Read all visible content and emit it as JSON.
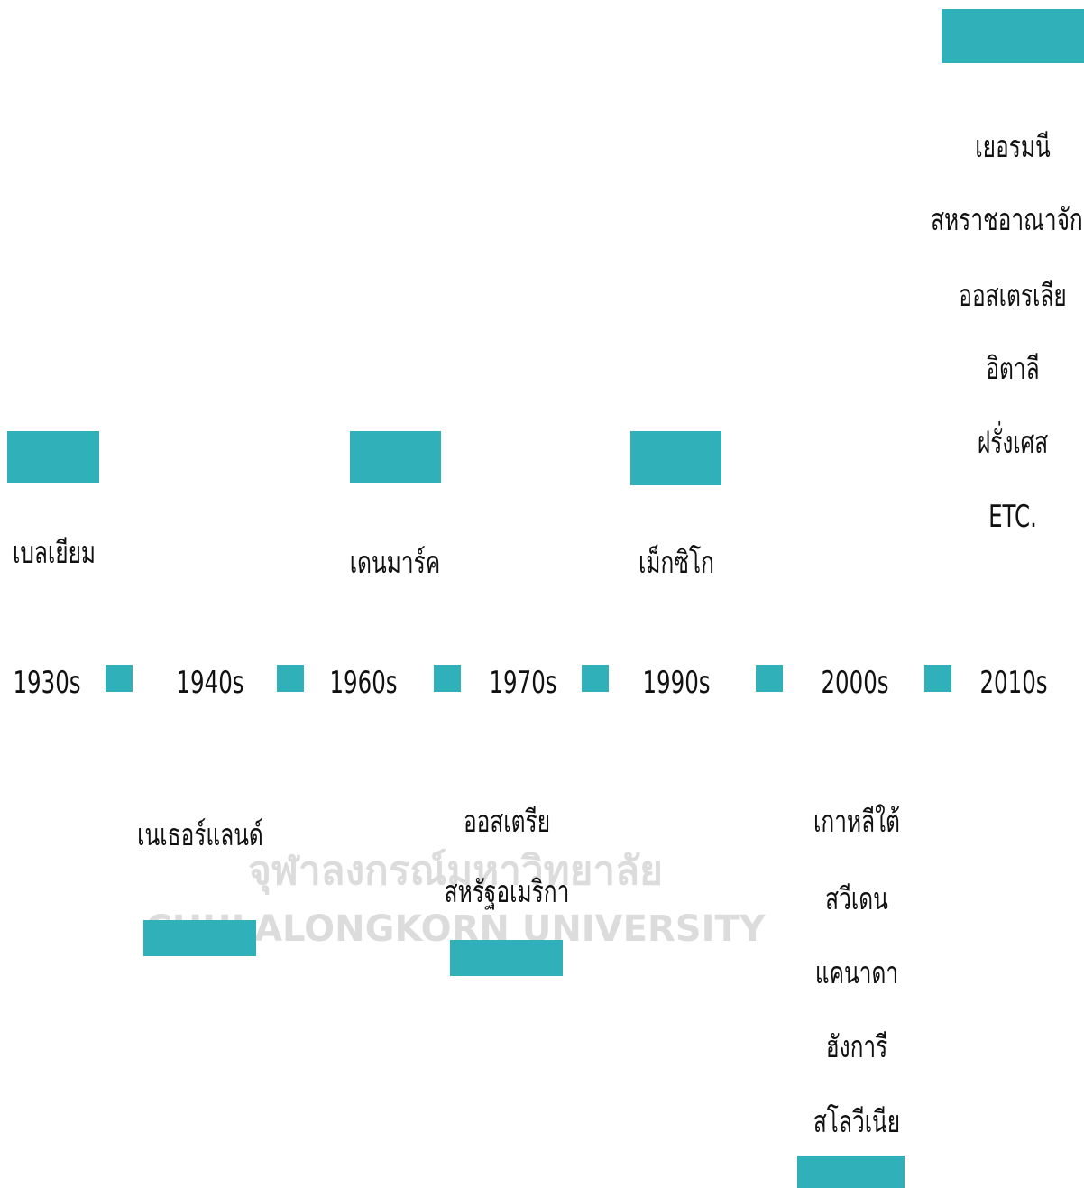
{
  "watermark": {
    "thai": "จุฬาลงกรณ์มหาวิทยาลัย",
    "english": "CHULALONGKORN UNIVERSITY"
  },
  "timeline": {
    "decades": [
      "1930s",
      "1940s",
      "1960s",
      "1970s",
      "1990s",
      "2000s",
      "2010s"
    ]
  },
  "groups": [
    {
      "countries": [
        "เบลเยียม"
      ]
    },
    {
      "countries": [
        "เนเธอร์แลนด์"
      ]
    },
    {
      "countries": [
        "เดนมาร์ค"
      ]
    },
    {
      "countries": [
        "ออสเตรีย",
        "สหรัฐอเมริกา"
      ]
    },
    {
      "countries": [
        "เม็กซิโก"
      ]
    },
    {
      "countries": [
        "เกาหลีใต้",
        "สวีเดน",
        "แคนาดา",
        "ฮังการี",
        "สโลวีเนีย"
      ]
    },
    {
      "countries": [
        "เยอรมนี",
        "สหราชอาณาจักร",
        "ออสเตรเลีย",
        "อิตาลี",
        "ฝรั่งเศส",
        "ETC."
      ]
    }
  ]
}
